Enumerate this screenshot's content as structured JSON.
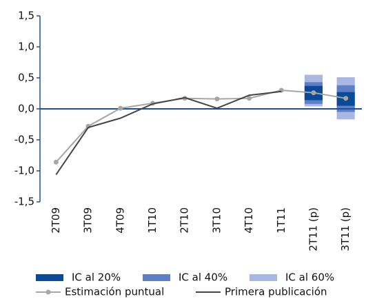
{
  "chart_data": {
    "type": "line",
    "categories": [
      "2T09",
      "3T09",
      "4T09",
      "1T10",
      "2T10",
      "3T10",
      "4T10",
      "1T11",
      "2T11 (p)",
      "3T11 (p)"
    ],
    "ylim": [
      -1.5,
      1.5
    ],
    "yticks": [
      {
        "value": -1.5,
        "label": "-1,5"
      },
      {
        "value": -1.0,
        "label": "-1,0"
      },
      {
        "value": -0.5,
        "label": "-0,5"
      },
      {
        "value": 0,
        "label": "0,0"
      },
      {
        "value": 0.5,
        "label": "0,5"
      },
      {
        "value": 1.0,
        "label": "1,0"
      },
      {
        "value": 1.5,
        "label": "1,5"
      }
    ],
    "intervals": [
      {
        "name": "IC al 60%",
        "color": "#a9b8e2",
        "low": [
          null,
          null,
          null,
          null,
          null,
          null,
          null,
          null,
          0.04,
          -0.17
        ],
        "high": [
          null,
          null,
          null,
          null,
          null,
          null,
          null,
          null,
          0.55,
          0.51
        ]
      },
      {
        "name": "IC al 40%",
        "color": "#5e7fc6",
        "low": [
          null,
          null,
          null,
          null,
          null,
          null,
          null,
          null,
          0.08,
          -0.05
        ],
        "high": [
          null,
          null,
          null,
          null,
          null,
          null,
          null,
          null,
          0.43,
          0.38
        ]
      },
      {
        "name": "IC al 20%",
        "color": "#0b4a96",
        "low": [
          null,
          null,
          null,
          null,
          null,
          null,
          null,
          null,
          0.14,
          0.05
        ],
        "high": [
          null,
          null,
          null,
          null,
          null,
          null,
          null,
          null,
          0.37,
          0.27
        ]
      }
    ],
    "series": [
      {
        "name": "Estimación puntual",
        "color": "#a6a6a6",
        "markers": true,
        "values": [
          -0.86,
          -0.28,
          0.01,
          0.09,
          0.17,
          0.16,
          0.17,
          0.3,
          0.26,
          0.17
        ]
      },
      {
        "name": "Primera publicación",
        "color": "#444444",
        "markers": false,
        "values": [
          -1.06,
          -0.3,
          -0.15,
          0.08,
          0.18,
          0.01,
          0.22,
          0.28,
          null,
          null
        ]
      }
    ],
    "legend_order": [
      2,
      1,
      0
    ]
  }
}
